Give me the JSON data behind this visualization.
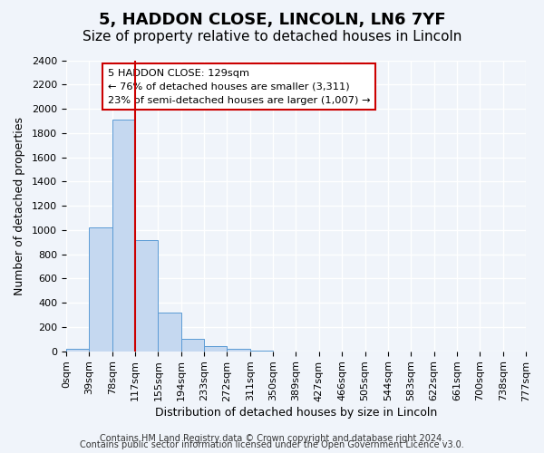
{
  "title": "5, HADDON CLOSE, LINCOLN, LN6 7YF",
  "subtitle": "Size of property relative to detached houses in Lincoln",
  "xlabel": "Distribution of detached houses by size in Lincoln",
  "ylabel": "Number of detached properties",
  "bin_labels": [
    "0sqm",
    "39sqm",
    "78sqm",
    "117sqm",
    "155sqm",
    "194sqm",
    "233sqm",
    "272sqm",
    "311sqm",
    "350sqm",
    "389sqm",
    "427sqm",
    "466sqm",
    "505sqm",
    "544sqm",
    "583sqm",
    "622sqm",
    "661sqm",
    "700sqm",
    "738sqm",
    "777sqm"
  ],
  "bar_values": [
    20,
    1020,
    1910,
    920,
    320,
    105,
    45,
    20,
    5,
    0,
    0,
    0,
    0,
    0,
    0,
    0,
    0,
    0,
    0,
    0
  ],
  "bar_color": "#c5d8f0",
  "bar_edge_color": "#5b9bd5",
  "vline_x": 3,
  "vline_color": "#cc0000",
  "annotation_text": "5 HADDON CLOSE: 129sqm\n← 76% of detached houses are smaller (3,311)\n23% of semi-detached houses are larger (1,007) →",
  "annotation_box_edge": "#cc0000",
  "ylim": [
    0,
    2400
  ],
  "yticks": [
    0,
    200,
    400,
    600,
    800,
    1000,
    1200,
    1400,
    1600,
    1800,
    2000,
    2200,
    2400
  ],
  "footer_line1": "Contains HM Land Registry data © Crown copyright and database right 2024.",
  "footer_line2": "Contains public sector information licensed under the Open Government Licence v3.0.",
  "background_color": "#f0f4fa",
  "grid_color": "#ffffff",
  "title_fontsize": 13,
  "subtitle_fontsize": 11,
  "axis_label_fontsize": 9,
  "tick_fontsize": 8,
  "footer_fontsize": 7
}
